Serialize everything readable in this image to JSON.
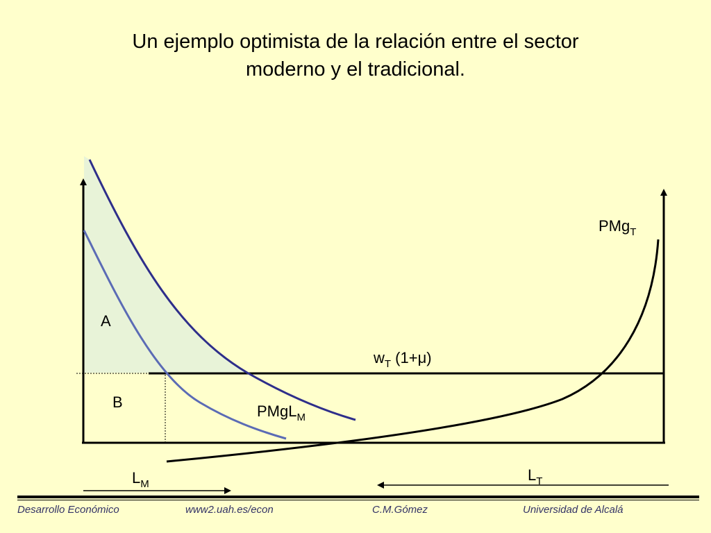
{
  "slide": {
    "title_line1": "Un ejemplo optimista de la relación entre el sector",
    "title_line2": "moderno y el tradicional."
  },
  "diagram": {
    "area_labels": {
      "a": "A",
      "b": "B"
    },
    "pmg_t": {
      "base": "PMg",
      "sub": "T"
    },
    "pmgl_m": {
      "base": "PMgL",
      "sub": "M"
    },
    "wage": {
      "base": "w",
      "sub": "T",
      "rest": " (1+μ)"
    },
    "l_m": {
      "base": "L",
      "sub": "M"
    },
    "l_t": {
      "base": "L",
      "sub": "T"
    },
    "colors": {
      "curve_dark": "#2e2e8a",
      "curve_light": "#5b6bb5",
      "shade": "#e8f3d8",
      "axis": "#000000",
      "background": "#ffffcc",
      "footer_text": "#333366"
    }
  },
  "footer": {
    "course": "Desarrollo Económico",
    "website": "www2.uah.es/econ",
    "author": "C.M.Gómez",
    "university": "Universidad de Alcalá"
  }
}
